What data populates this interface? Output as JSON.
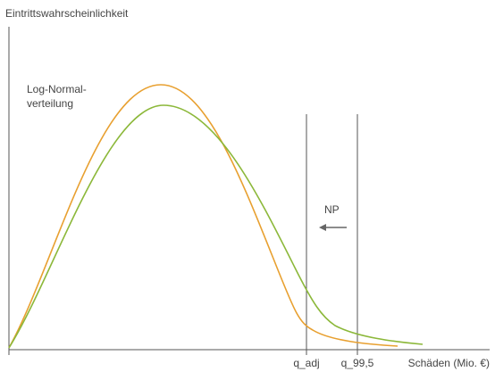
{
  "y_axis_label": "Eintrittswahrscheinlichkeit",
  "curve_label": [
    "Log-Normal-",
    "verteilung"
  ],
  "arrow_label": "NP",
  "x_markers": [
    "q_adj",
    "q_99,5"
  ],
  "x_axis_label": "Schäden (Mio. €)"
}
